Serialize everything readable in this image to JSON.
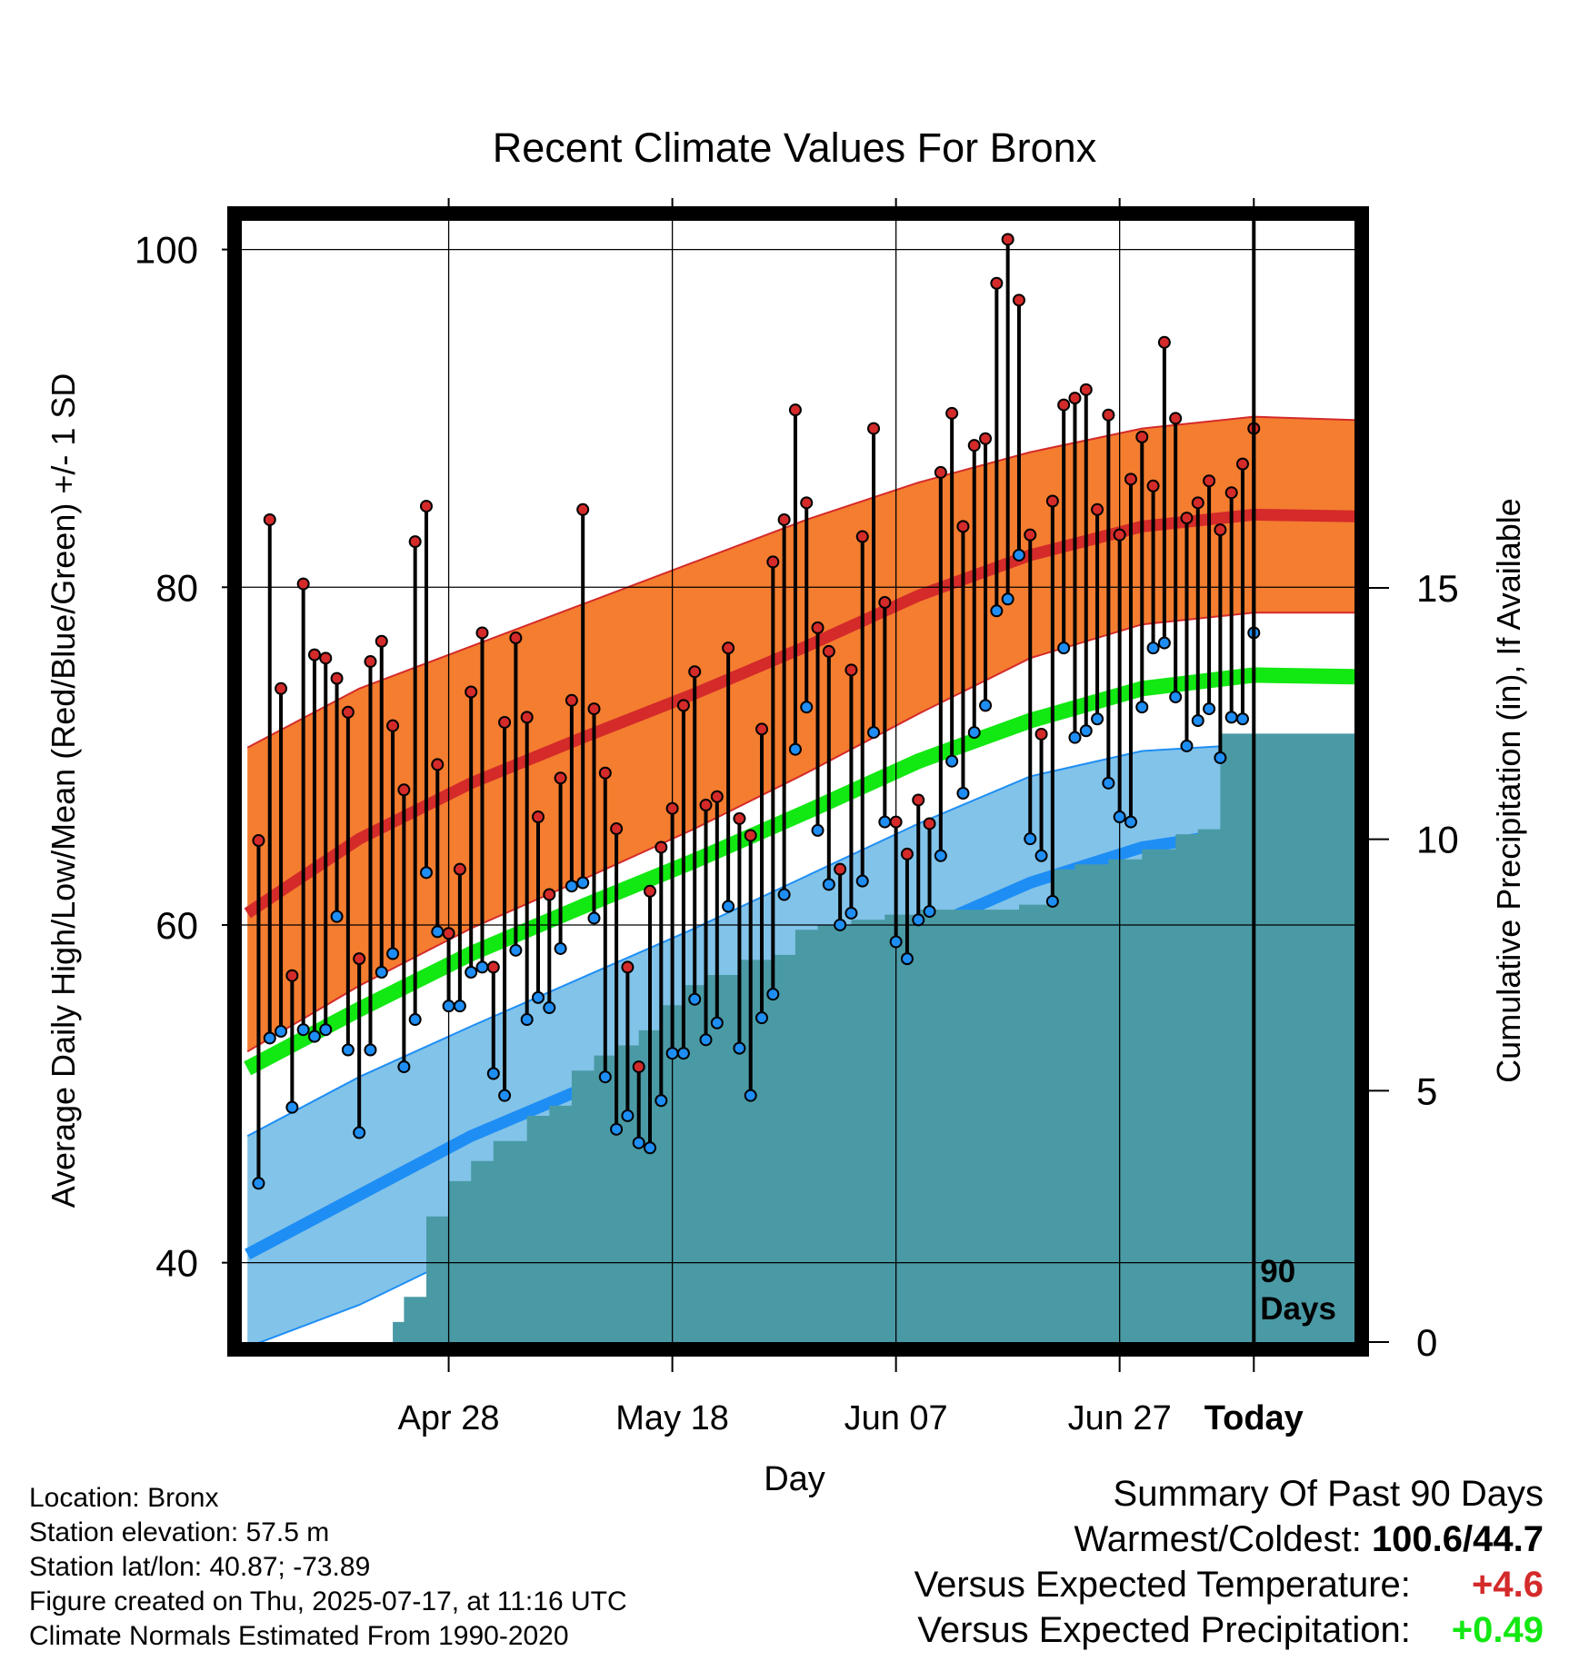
{
  "chart_data": {
    "type": "line",
    "title": "Recent Climate Values For Bronx",
    "xlabel": "Day",
    "ylabel": "Average Daily High/Low/Mean (Red/Blue/Green) +/- 1 SD",
    "y2label": "Cumulative Precipitation (in), If Available",
    "x_tick_labels": [
      "Apr 28",
      "May 18",
      "Jun 07",
      "Jun 27",
      "Today"
    ],
    "y_ticks": [
      "40",
      "60",
      "80",
      "100"
    ],
    "y2_ticks": [
      "0",
      "5",
      "10",
      "15"
    ],
    "ylim": [
      35.3,
      101.7
    ],
    "y2lim": [
      0,
      22.3
    ],
    "xlim": [
      -90.5,
      9
    ],
    "grid": true,
    "today_marker": "90\nDays",
    "colors": {
      "high": "#d42a2a",
      "high_band": "#f47d30",
      "mean": "#12e812",
      "low": "#1e8ef5",
      "low_band": "#82c3e9",
      "precip": "#4a9aa5",
      "point_outline": "#000000"
    },
    "series": [
      {
        "name": "Daily High",
        "values": [
          65,
          84,
          74,
          57,
          80.2,
          76,
          75.8,
          74.6,
          72.6,
          58,
          75.6,
          76.8,
          71.8,
          68,
          82.7,
          84.8,
          69.5,
          59.5,
          63.3,
          73.8,
          77.3,
          57.5,
          72,
          77,
          72.3,
          66.4,
          61.8,
          68.7,
          73.3,
          84.6,
          72.8,
          69,
          65.7,
          57.5,
          51.6,
          62,
          64.6,
          66.9,
          73,
          75,
          67.1,
          67.6,
          76.4,
          66.3,
          65.3,
          71.6,
          81.5,
          84,
          90.5,
          85,
          77.6,
          76.2,
          63.3,
          75.1,
          83,
          89.4,
          79.1,
          66.1,
          64.2,
          67.4,
          66,
          86.8,
          90.3,
          83.6,
          88.4,
          88.8,
          98,
          100.6,
          97,
          83.1,
          71.3,
          85.1,
          90.8,
          91.2,
          91.7,
          84.6,
          90.2,
          83.1,
          86.4,
          88.9,
          86,
          94.5,
          90,
          84.1,
          85,
          86.3,
          83.4,
          85.6,
          87.3,
          89.4
        ]
      },
      {
        "name": "Daily Low",
        "values": [
          44.7,
          53.3,
          53.7,
          49.2,
          53.8,
          53.4,
          53.8,
          60.5,
          52.6,
          47.7,
          52.6,
          57.2,
          58.3,
          51.6,
          54.4,
          63.1,
          59.6,
          55.2,
          55.2,
          57.2,
          57.5,
          51.2,
          49.9,
          58.5,
          54.4,
          55.7,
          55.1,
          58.6,
          62.3,
          62.5,
          60.4,
          51,
          47.9,
          48.7,
          47.1,
          46.8,
          49.6,
          52.4,
          52.4,
          55.6,
          53.2,
          54.2,
          61.1,
          52.7,
          49.9,
          54.5,
          55.9,
          61.8,
          70.4,
          72.9,
          65.6,
          62.4,
          60,
          60.7,
          62.6,
          71.4,
          66.1,
          59,
          58,
          60.3,
          60.8,
          64.1,
          69.7,
          67.8,
          71.4,
          73,
          78.6,
          79.3,
          81.9,
          65.1,
          64.1,
          61.4,
          76.4,
          71.1,
          71.5,
          72.2,
          68.4,
          66.4,
          66.1,
          72.9,
          76.4,
          76.7,
          73.5,
          70.6,
          72.1,
          72.8,
          69.9,
          72.3,
          72.2,
          77.3
        ]
      },
      {
        "name": "Normal High",
        "x": [
          -90,
          -80,
          -70,
          -60,
          -50,
          -40,
          -30,
          -20,
          -10,
          0,
          9
        ],
        "values": [
          60.7,
          65.1,
          68.4,
          71.1,
          73.7,
          76.5,
          79.5,
          81.9,
          83.6,
          84.3,
          84.2
        ]
      },
      {
        "name": "Normal High +1 SD",
        "x": [
          -90,
          -80,
          -70,
          -60,
          -50,
          -40,
          -30,
          -20,
          -10,
          0,
          9
        ],
        "values": [
          70.5,
          74,
          76.5,
          79,
          81.5,
          84,
          86.2,
          88,
          89.4,
          90.1,
          89.9
        ]
      },
      {
        "name": "Normal High -1 SD",
        "x": [
          -90,
          -80,
          -70,
          -60,
          -50,
          -40,
          -30,
          -20,
          -10,
          0,
          9
        ],
        "values": [
          52.5,
          56.4,
          59.8,
          62.7,
          65.7,
          69,
          72.5,
          75.8,
          77.8,
          78.5,
          78.5
        ]
      },
      {
        "name": "Normal Mean",
        "x": [
          -90,
          -80,
          -70,
          -60,
          -50,
          -40,
          -30,
          -20,
          -10,
          0,
          9
        ],
        "values": [
          51.5,
          55,
          58.3,
          61.1,
          63.8,
          66.7,
          69.7,
          72.1,
          74,
          74.8,
          74.7
        ]
      },
      {
        "name": "Normal Low",
        "x": [
          -90,
          -80,
          -70,
          -60,
          -50,
          -40,
          -30,
          -20,
          -10,
          0,
          9
        ],
        "values": [
          40.5,
          44,
          47.5,
          50.3,
          53.2,
          56.3,
          59.6,
          62.5,
          64.6,
          65.6,
          65.6
        ]
      },
      {
        "name": "Normal Low +1 SD",
        "x": [
          -90,
          -80,
          -70,
          -60,
          -50,
          -40,
          -30,
          -20,
          -10,
          0,
          9
        ],
        "values": [
          47.5,
          51,
          54,
          56.9,
          59.8,
          62.9,
          66,
          68.8,
          70.3,
          70.7,
          70.7
        ]
      },
      {
        "name": "Normal Low -1 SD",
        "x": [
          -90,
          -80,
          -70,
          -60,
          -50,
          -40,
          -30,
          -20,
          -10,
          0,
          9
        ],
        "values": [
          35,
          37.5,
          40.7,
          43.6,
          46.5,
          49.8,
          53.3,
          56.6,
          59.3,
          60.4,
          60.6
        ]
      },
      {
        "name": "Cumulative Precipitation",
        "x": [
          -77,
          -76,
          -74,
          -72,
          -70,
          -68,
          -65,
          -63,
          -61,
          -59,
          -57,
          -55,
          -53,
          -51,
          -49,
          -46,
          -43,
          -41,
          -39,
          -36,
          -33,
          -30,
          -27,
          -24,
          -21,
          -18,
          -16,
          -13,
          -10,
          -7,
          -5,
          -3,
          9
        ],
        "values": [
          0.4,
          0.9,
          2.5,
          3.2,
          3.6,
          4,
          4.5,
          4.7,
          5.4,
          5.7,
          5.9,
          6.2,
          6.7,
          7.1,
          7.3,
          7.6,
          7.7,
          8.2,
          8.3,
          8.4,
          8.5,
          8.6,
          8.6,
          8.6,
          8.7,
          9.4,
          9.5,
          9.6,
          9.8,
          10.1,
          10.2,
          12.1,
          12.1
        ]
      }
    ]
  },
  "info": {
    "location": "Location: Bronx",
    "elevation": "Station elevation: 57.5 m",
    "latlon": "Station lat/lon: 40.87; -73.89",
    "created": "Figure created on Thu, 2025-07-17, at 11:16 UTC",
    "normals": "Climate Normals Estimated From 1990-2020"
  },
  "summary": {
    "title": "Summary Of Past 90 Days",
    "warm_cold_label": "Warmest/Coldest:",
    "warm_cold_value": "100.6/44.7",
    "temp_label": "Versus Expected Temperature:",
    "temp_value": "+4.6",
    "temp_color": "#d42a2a",
    "precip_label": "Versus Expected Precipitation:",
    "precip_value": "+0.49",
    "precip_color": "#12e812"
  }
}
